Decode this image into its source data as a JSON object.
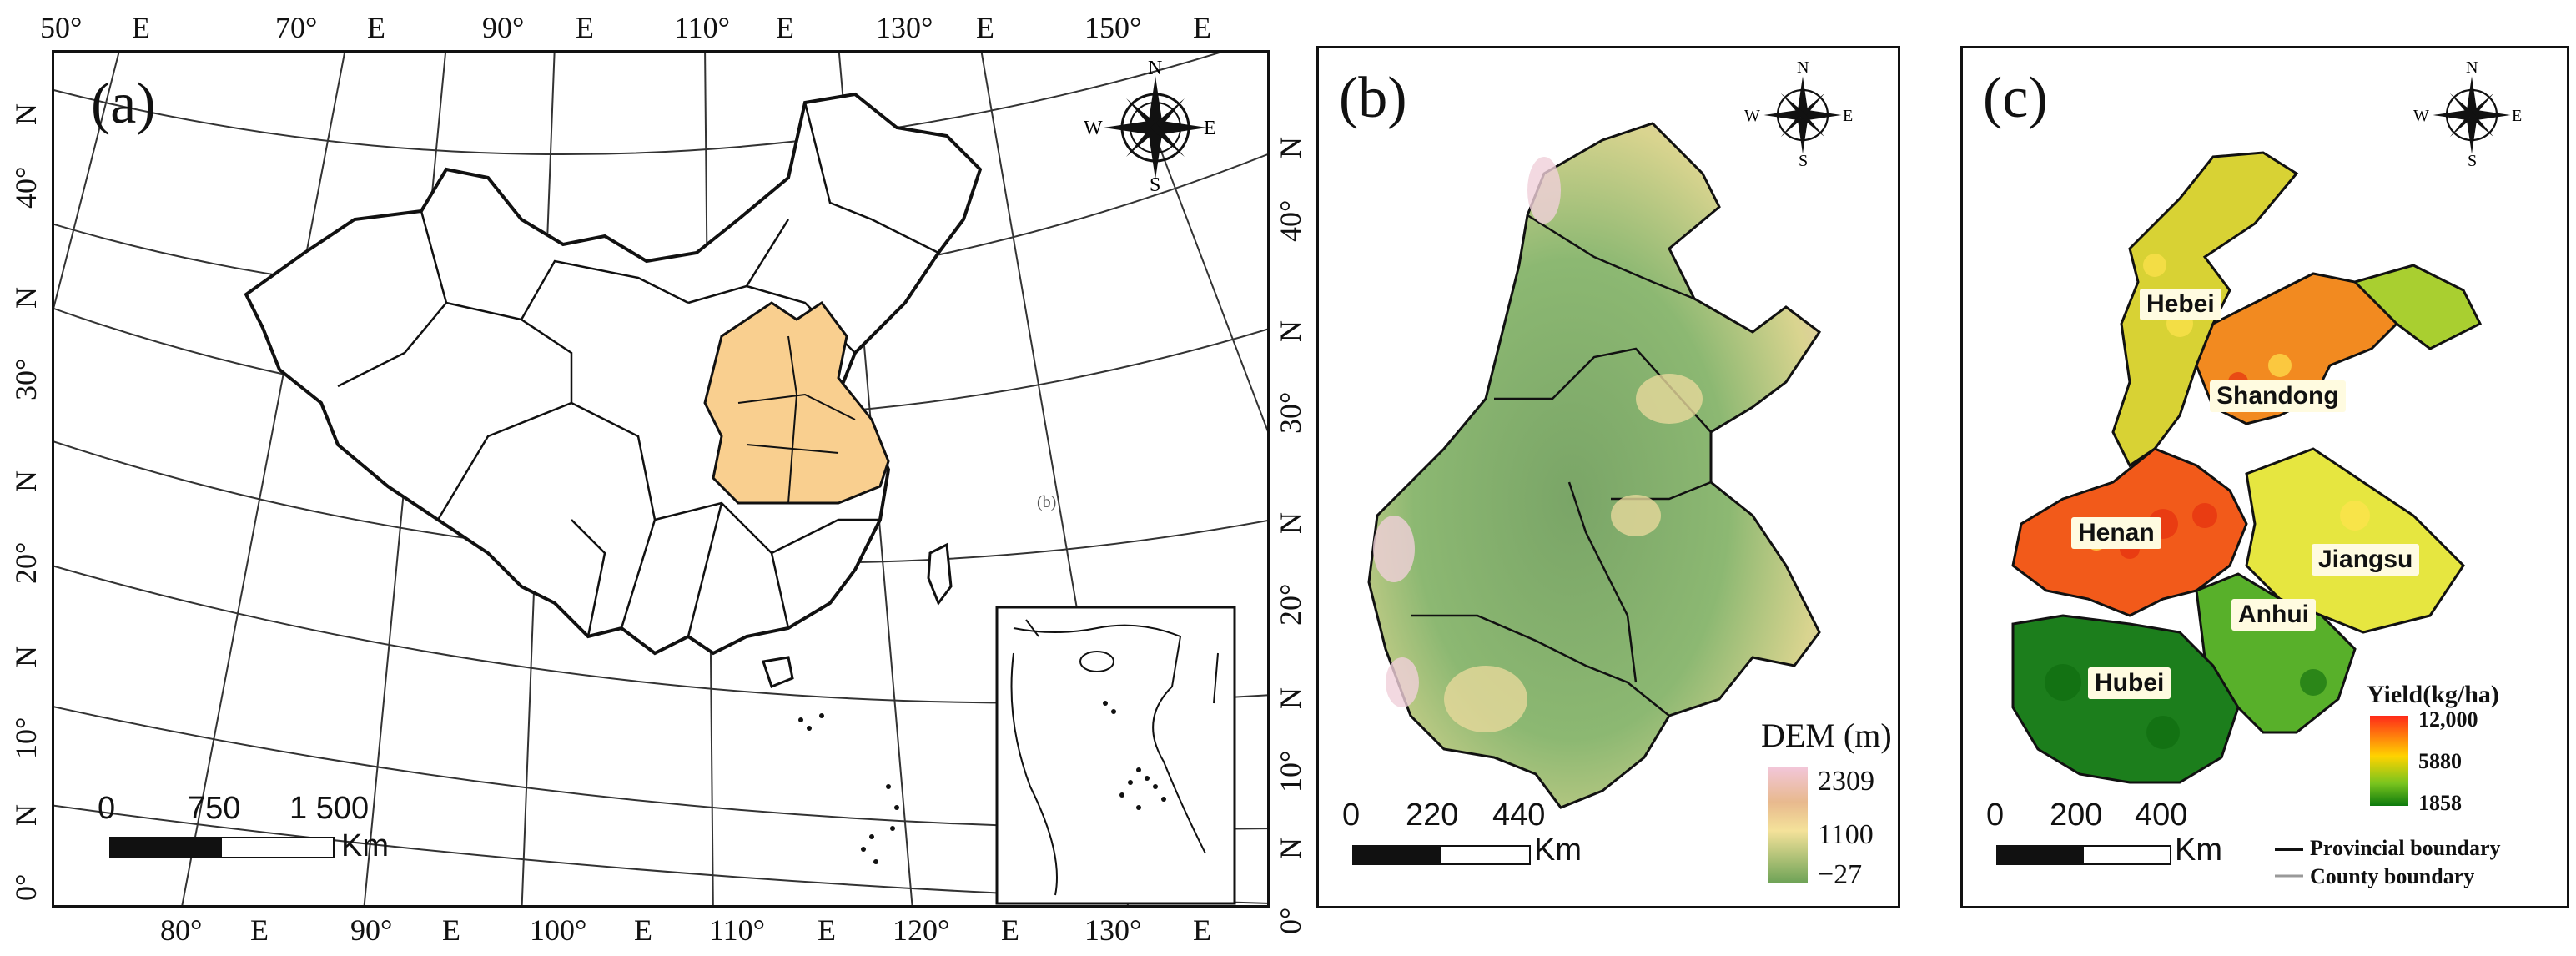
{
  "panel_a": {
    "label": "(a)",
    "top_ticks": [
      "50°",
      "E",
      "70°",
      "E",
      "90°",
      "E",
      "110°",
      "E",
      "130°",
      "E",
      "150°",
      "E"
    ],
    "bottom_ticks": [
      "80°",
      "E",
      "90°",
      "E",
      "100°",
      "E",
      "110°",
      "E",
      "120°",
      "E",
      "130°",
      "E"
    ],
    "left_ticks": [
      "N",
      "40°",
      "N",
      "30°",
      "N",
      "20°",
      "N",
      "10°",
      "N",
      "0°"
    ],
    "right_ticks": [
      "N",
      "40°",
      "N",
      "30°",
      "N",
      "20°",
      "N",
      "10°",
      "N",
      "0°"
    ],
    "scale_numbers": [
      "0",
      "750",
      "1 500"
    ],
    "scale_unit": "Km",
    "inset_label": "(b)",
    "highlight_color": "#f9cf8f"
  },
  "compass": {
    "n": "N",
    "s": "S",
    "e": "E",
    "w": "W"
  },
  "panel_b": {
    "label": "(b)",
    "legend_title": "DEM (m)",
    "legend_values": [
      "2309",
      "1100",
      "−27"
    ],
    "scale_numbers": [
      "0",
      "220",
      "440"
    ],
    "scale_unit": "Km"
  },
  "panel_c": {
    "label": "(c)",
    "provinces": [
      "Hebei",
      "Shandong",
      "Henan",
      "Jiangsu",
      "Anhui",
      "Hubei"
    ],
    "legend_title": "Yield(kg/ha)",
    "legend_values": [
      "12,000",
      "5880",
      "1858"
    ],
    "scale_numbers": [
      "0",
      "200",
      "400"
    ],
    "scale_unit": "Km",
    "boundary_legend": [
      "Provincial boundary",
      "County boundary"
    ]
  }
}
